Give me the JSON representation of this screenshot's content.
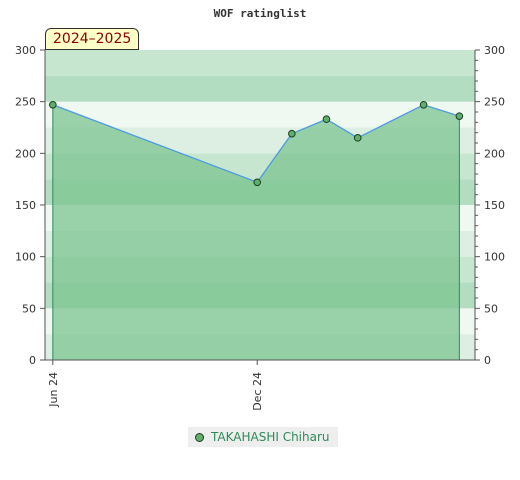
{
  "chart_data": {
    "type": "area",
    "title": "WOF ratinglist",
    "season_label": "2024–2025",
    "xlabel": "",
    "ylabel": "",
    "x_ticks": [
      "Jun 24",
      "Dec 24"
    ],
    "x_range": [
      "2024-05-25",
      "2025-06-14"
    ],
    "ylim": [
      0,
      300
    ],
    "y_ticks": [
      0,
      50,
      100,
      150,
      200,
      250,
      300
    ],
    "y_ticks_right": [
      0,
      50,
      100,
      150,
      200,
      250,
      300
    ],
    "grid": false,
    "legend_position": "bottom-center",
    "colors": {
      "line": "#4d9be0",
      "fill": "#7cc490",
      "marker": "#5fb06a",
      "legend_text": "#2e8b57"
    },
    "series": [
      {
        "name": "TAKAHASHI Chiharu",
        "x": [
          "2024-06-01",
          "2024-12-01",
          "2025-01-01",
          "2025-02-01",
          "2025-03-01",
          "2025-04-29",
          "2025-05-31"
        ],
        "values": [
          247,
          172,
          219,
          233,
          215,
          247,
          236
        ]
      }
    ]
  }
}
